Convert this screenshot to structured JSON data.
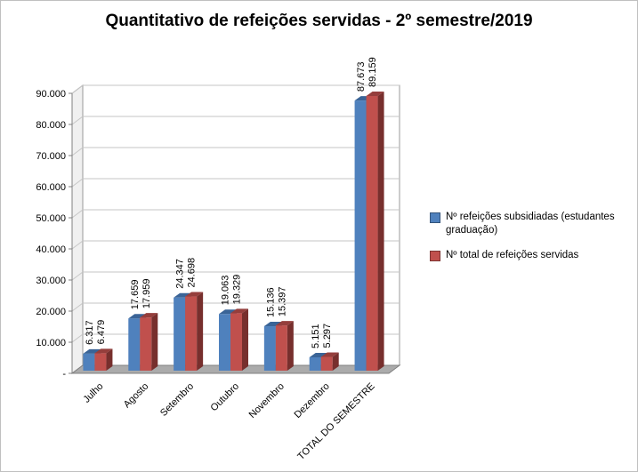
{
  "frame": {
    "border_color": "#c0c0c0",
    "background": "#ffffff"
  },
  "chart_data": {
    "type": "bar",
    "style": "3d-clustered-column",
    "title": "Quantitativo de refeições servidas - 2º semestre/2019",
    "categories": [
      "Julho",
      "Agosto",
      "Setembro",
      "Outubro",
      "Novembro",
      "Dezembro",
      "TOTAL DO SEMESTRE"
    ],
    "series": [
      {
        "name": "Nº refeições subsidiadas (estudantes graduação)",
        "color": "#4F81BD",
        "top_color": "#3A6497",
        "side_color": "#2C4D75",
        "values": [
          6317,
          17659,
          24347,
          19063,
          15136,
          5151,
          87673
        ],
        "labels": [
          "6.317",
          "17.659",
          "24.347",
          "19.063",
          "15.136",
          "5.151",
          "87.673"
        ]
      },
      {
        "name": "Nº total  de refeições servidas",
        "color": "#C0504D",
        "top_color": "#953E3C",
        "side_color": "#772F2D",
        "values": [
          6479,
          17959,
          24698,
          19329,
          15397,
          5297,
          89159
        ],
        "labels": [
          "6.479",
          "17.959",
          "24.698",
          "19.329",
          "15.397",
          "5.297",
          "89.159"
        ]
      }
    ],
    "y_axis": {
      "min": 0,
      "max": 90000,
      "step": 10000,
      "tick_labels": [
        "-",
        "10.000",
        "20.000",
        "30.000",
        "40.000",
        "50.000",
        "60.000",
        "70.000",
        "80.000",
        "90.000"
      ]
    },
    "legend_position": "right",
    "grid": true,
    "data_labels_rotation": -90,
    "category_labels_rotation": -45
  }
}
